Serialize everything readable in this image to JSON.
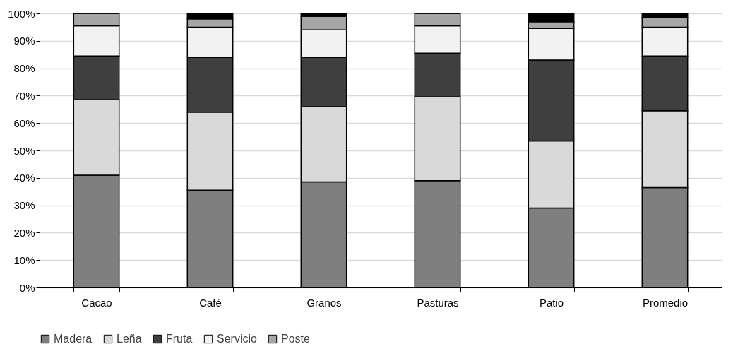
{
  "chart_data": {
    "type": "bar",
    "stacked": true,
    "categories": [
      "Cacao",
      "Café",
      "Granos",
      "Pasturas",
      "Patio",
      "Promedio"
    ],
    "series": [
      {
        "name": "Madera",
        "color": "#7f7f7f",
        "values": [
          41,
          35.5,
          38.5,
          39,
          29,
          36.5
        ]
      },
      {
        "name": "Leña",
        "color": "#d9d9d9",
        "values": [
          27.5,
          28.5,
          27.5,
          30.5,
          24.5,
          28
        ]
      },
      {
        "name": "Fruta",
        "color": "#3f3f3f",
        "values": [
          16,
          20,
          18,
          16,
          29.5,
          20
        ]
      },
      {
        "name": "Servicio",
        "color": "#f2f2f2",
        "values": [
          11,
          11,
          10,
          10,
          11.5,
          10.5
        ]
      },
      {
        "name": "Poste",
        "color": "#a6a6a6",
        "values": [
          4.5,
          3,
          5,
          4.5,
          2.5,
          3.5
        ]
      },
      {
        "color": "#000000",
        "values": [
          0,
          2,
          1,
          0,
          3,
          1.5
        ]
      }
    ],
    "ylim": [
      0,
      100
    ],
    "yticks": [
      {
        "value": 0,
        "label": "0%"
      },
      {
        "value": 10,
        "label": "10%"
      },
      {
        "value": 20,
        "label": "20%"
      },
      {
        "value": 30,
        "label": "30%"
      },
      {
        "value": 40,
        "label": "40%"
      },
      {
        "value": 50,
        "label": "50%"
      },
      {
        "value": 60,
        "label": "60%"
      },
      {
        "value": 70,
        "label": "70%"
      },
      {
        "value": 80,
        "label": "80%"
      },
      {
        "value": 90,
        "label": "90%"
      },
      {
        "value": 100,
        "label": "100%"
      }
    ],
    "grid": "y",
    "legend": "bottom"
  }
}
